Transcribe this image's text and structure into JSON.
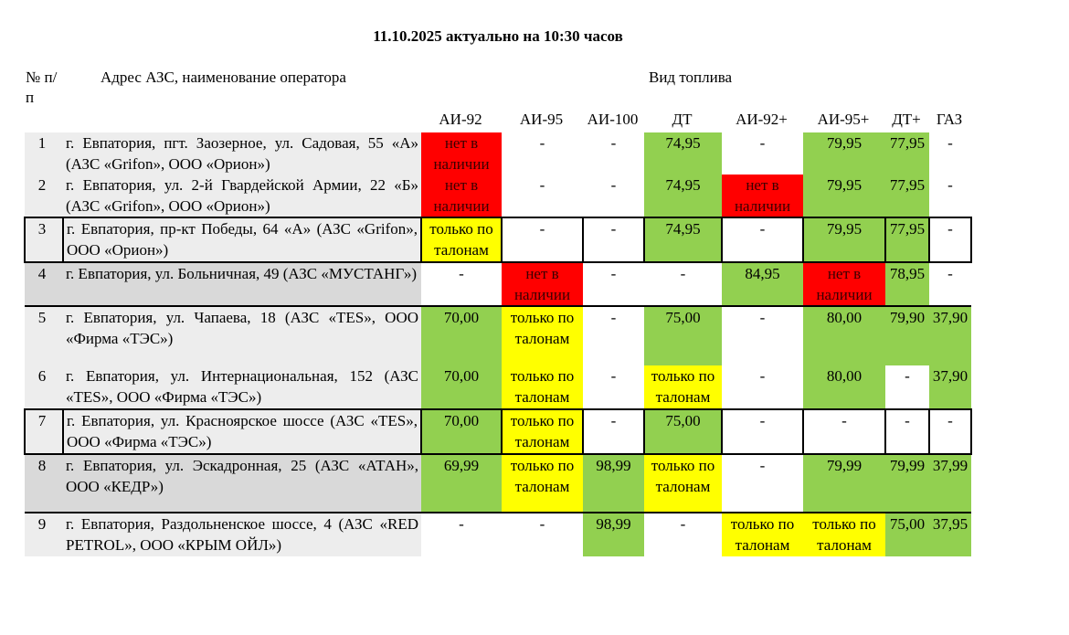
{
  "title": "11.10.2025 актуально на 10:30 часов",
  "header": {
    "num": "№ п/ п",
    "address": "Адрес АЗС, наименование оператора",
    "fuel_group": "Вид топлива",
    "fuels": [
      "АИ-92",
      "АИ-95",
      "АИ-100",
      "ДТ",
      "АИ-92+",
      "АИ-95+",
      "ДТ+",
      "ГАЗ"
    ]
  },
  "colors": {
    "available": "#92d050",
    "not_available": "#ff0000",
    "coupons_only": "#ffff00"
  },
  "rows": [
    {
      "num": "1",
      "address": "г. Евпатория, пгт. Заозерное, ул. Садовая, 55 «А» (АЗС «Grifon», ООО «Орион»)",
      "shade": "l1",
      "cells": [
        {
          "v": "нет в наличии",
          "c": "r"
        },
        {
          "v": "-",
          "c": ""
        },
        {
          "v": "-",
          "c": ""
        },
        {
          "v": "74,95",
          "c": "g"
        },
        {
          "v": "-",
          "c": ""
        },
        {
          "v": "79,95",
          "c": "g"
        },
        {
          "v": "77,95",
          "c": "g"
        },
        {
          "v": "-",
          "c": ""
        }
      ]
    },
    {
      "num": "2",
      "address": "г. Евпатория, ул. 2-й Гвардейской Армии, 22 «Б» (АЗС «Grifon», ООО «Орион»)",
      "shade": "l1",
      "cells": [
        {
          "v": "нет в наличии",
          "c": "r"
        },
        {
          "v": "-",
          "c": ""
        },
        {
          "v": "-",
          "c": ""
        },
        {
          "v": "74,95",
          "c": "g"
        },
        {
          "v": "нет в наличии",
          "c": "r"
        },
        {
          "v": "79,95",
          "c": "g"
        },
        {
          "v": "77,95",
          "c": "g"
        },
        {
          "v": "-",
          "c": ""
        }
      ]
    },
    {
      "num": "3",
      "address": "г. Евпатория, пр-кт Победы, 64 «А» (АЗС «Grifon», ООО «Орион»)",
      "shade": "l1",
      "boxed": true,
      "cells": [
        {
          "v": "только по талонам",
          "c": "y"
        },
        {
          "v": "-",
          "c": ""
        },
        {
          "v": "-",
          "c": ""
        },
        {
          "v": "74,95",
          "c": "g"
        },
        {
          "v": "-",
          "c": ""
        },
        {
          "v": "79,95",
          "c": "g"
        },
        {
          "v": "77,95",
          "c": "g"
        },
        {
          "v": "-",
          "c": ""
        }
      ]
    },
    {
      "num": "4",
      "address": "г. Евпатория, ул. Больничная, 49 (АЗС «МУСТАНГ»)",
      "shade": "l2",
      "under": true,
      "cells": [
        {
          "v": "-",
          "c": ""
        },
        {
          "v": "нет в наличии",
          "c": "r"
        },
        {
          "v": "-",
          "c": ""
        },
        {
          "v": "-",
          "c": ""
        },
        {
          "v": "84,95",
          "c": "g"
        },
        {
          "v": "нет в наличии",
          "c": "r"
        },
        {
          "v": "78,95",
          "c": "g"
        },
        {
          "v": "-",
          "c": ""
        }
      ]
    },
    {
      "num": "5",
      "address": "г. Евпатория, ул. Чапаева, 18 (АЗС «TES», ООО «Фирма «ТЭС»)",
      "shade": "l1",
      "cells": [
        {
          "v": "70,00",
          "c": "g"
        },
        {
          "v": "только по талонам",
          "c": "y"
        },
        {
          "v": "-",
          "c": ""
        },
        {
          "v": "75,00",
          "c": "g"
        },
        {
          "v": "-",
          "c": ""
        },
        {
          "v": "80,00",
          "c": "g"
        },
        {
          "v": "79,90",
          "c": "g"
        },
        {
          "v": "37,90",
          "c": "g"
        }
      ]
    },
    {
      "num": "6",
      "address": "г. Евпатория, ул. Интернациональная, 152 (АЗС «TES», ООО «Фирма «ТЭС»)",
      "shade": "l1",
      "cells": [
        {
          "v": "70,00",
          "c": "g"
        },
        {
          "v": "только по талонам",
          "c": "y"
        },
        {
          "v": "-",
          "c": ""
        },
        {
          "v": "только по талонам",
          "c": "y"
        },
        {
          "v": "-",
          "c": ""
        },
        {
          "v": "80,00",
          "c": "g"
        },
        {
          "v": "-",
          "c": ""
        },
        {
          "v": "37,90",
          "c": "g"
        }
      ]
    },
    {
      "num": "7",
      "address": "г. Евпатория, ул. Красноярское шоссе (АЗС «TES», ООО «Фирма «ТЭС»)",
      "shade": "l1",
      "boxed": true,
      "cells": [
        {
          "v": "70,00",
          "c": "g"
        },
        {
          "v": "только по талонам",
          "c": "y"
        },
        {
          "v": "-",
          "c": ""
        },
        {
          "v": "75,00",
          "c": "g"
        },
        {
          "v": "-",
          "c": ""
        },
        {
          "v": "-",
          "c": ""
        },
        {
          "v": "-",
          "c": ""
        },
        {
          "v": "-",
          "c": ""
        }
      ]
    },
    {
      "num": "8",
      "address": "г. Евпатория, ул. Эскадронная, 25 (АЗС «АТАН», ООО «КЕДР»)",
      "shade": "l2",
      "under": true,
      "cells": [
        {
          "v": "69,99",
          "c": "g"
        },
        {
          "v": "только по талонам",
          "c": "y"
        },
        {
          "v": "98,99",
          "c": "g"
        },
        {
          "v": "только по талонам",
          "c": "y"
        },
        {
          "v": "-",
          "c": ""
        },
        {
          "v": "79,99",
          "c": "g"
        },
        {
          "v": "79,99",
          "c": "g"
        },
        {
          "v": "37,99",
          "c": "g"
        }
      ]
    },
    {
      "num": "9",
      "address": "г. Евпатория, Раздольненское шоссе, 4 (АЗС «RED PETROL», ООО «КРЫМ ОЙЛ»)",
      "shade": "l1",
      "cells": [
        {
          "v": "-",
          "c": ""
        },
        {
          "v": "-",
          "c": ""
        },
        {
          "v": "98,99",
          "c": "g"
        },
        {
          "v": "-",
          "c": ""
        },
        {
          "v": "только по талонам",
          "c": "y"
        },
        {
          "v": "только по талонам",
          "c": "y"
        },
        {
          "v": "75,00",
          "c": "g"
        },
        {
          "v": "37,95",
          "c": "g"
        }
      ]
    }
  ]
}
